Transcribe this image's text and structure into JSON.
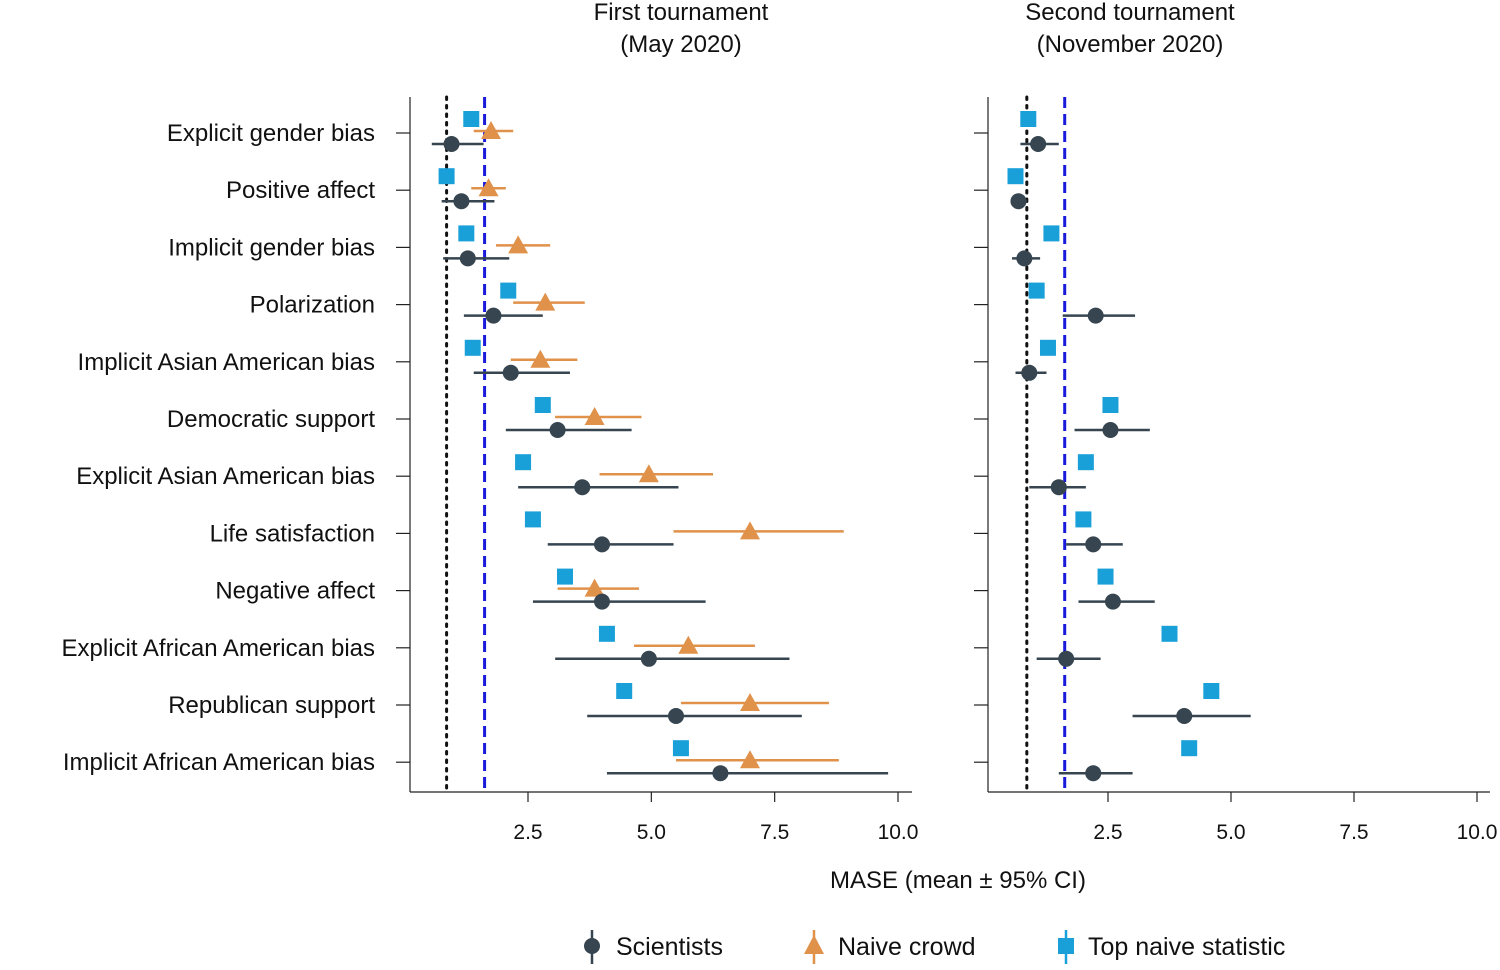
{
  "chart_data": {
    "type": "scatter",
    "xlabel": "MASE (mean ± 95% CI)",
    "xlim": [
      0,
      10.2
    ],
    "xticks": [
      2.5,
      5.0,
      7.5,
      10.0
    ],
    "xtick_labels": [
      "2.5",
      "5.0",
      "7.5",
      "10.0"
    ],
    "categories": [
      "Explicit gender bias",
      "Positive affect",
      "Implicit gender bias",
      "Polarization",
      "Implicit Asian American bias",
      "Democratic support",
      "Explicit Asian American bias",
      "Life satisfaction",
      "Negative affect",
      "Explicit African American bias",
      "Republican support",
      "Implicit African American bias"
    ],
    "reference_lines": [
      {
        "name": "dotted-black",
        "x": 0.85,
        "style": "dotted",
        "color": "#111111"
      },
      {
        "name": "dashed-blue",
        "x": 1.62,
        "style": "dashed",
        "color": "#1a1adb"
      }
    ],
    "legend": [
      {
        "name": "Scientists",
        "marker": "circle",
        "color": "#36454f"
      },
      {
        "name": "Naive crowd",
        "marker": "triangle",
        "color": "#e0914a"
      },
      {
        "name": "Top naive statistic",
        "marker": "square",
        "color": "#1aa0d8"
      }
    ],
    "panels": [
      {
        "title_line1": "First tournament",
        "title_line2": "(May 2020)",
        "series": [
          {
            "name": "Top naive statistic",
            "marker": "square",
            "values": [
              1.35,
              0.85,
              1.25,
              2.1,
              1.38,
              2.8,
              2.4,
              2.6,
              3.25,
              4.1,
              4.45,
              5.6
            ],
            "ci": null
          },
          {
            "name": "Naive crowd",
            "marker": "triangle",
            "values": [
              1.75,
              1.7,
              2.3,
              2.85,
              2.75,
              3.85,
              4.95,
              7.0,
              3.85,
              5.75,
              7.0,
              7.0
            ],
            "ci": [
              [
                1.4,
                2.2
              ],
              [
                1.35,
                2.05
              ],
              [
                1.85,
                2.95
              ],
              [
                2.2,
                3.65
              ],
              [
                2.15,
                3.5
              ],
              [
                3.05,
                4.8
              ],
              [
                3.95,
                6.25
              ],
              [
                5.45,
                8.9
              ],
              [
                3.1,
                4.75
              ],
              [
                4.65,
                7.1
              ],
              [
                5.6,
                8.6
              ],
              [
                5.5,
                8.8
              ]
            ]
          },
          {
            "name": "Scientists",
            "marker": "circle",
            "values": [
              0.95,
              1.15,
              1.28,
              1.8,
              2.15,
              3.1,
              3.6,
              4.0,
              4.0,
              4.95,
              5.5,
              6.4
            ],
            "ci": [
              [
                0.55,
                1.6
              ],
              [
                0.75,
                1.82
              ],
              [
                0.78,
                2.12
              ],
              [
                1.2,
                2.8
              ],
              [
                1.4,
                3.35
              ],
              [
                2.05,
                4.6
              ],
              [
                2.3,
                5.55
              ],
              [
                2.9,
                5.45
              ],
              [
                2.6,
                6.1
              ],
              [
                3.05,
                7.8
              ],
              [
                3.7,
                8.05
              ],
              [
                4.1,
                9.8
              ]
            ]
          }
        ]
      },
      {
        "title_line1": "Second tournament",
        "title_line2": "(November 2020)",
        "series": [
          {
            "name": "Top naive statistic",
            "marker": "square",
            "values": [
              0.88,
              0.62,
              1.35,
              1.05,
              1.28,
              2.55,
              2.05,
              2.0,
              2.45,
              3.75,
              4.6,
              4.15
            ],
            "ci": null
          },
          {
            "name": "Scientists",
            "marker": "circle",
            "values": [
              1.08,
              0.68,
              0.8,
              2.25,
              0.9,
              2.55,
              1.5,
              2.2,
              2.6,
              1.65,
              4.05,
              2.2
            ],
            "ci": [
              [
                0.72,
                1.5
              ],
              [
                0.55,
                0.85
              ],
              [
                0.55,
                1.12
              ],
              [
                1.58,
                3.05
              ],
              [
                0.62,
                1.25
              ],
              [
                1.82,
                3.35
              ],
              [
                0.9,
                2.05
              ],
              [
                1.65,
                2.8
              ],
              [
                1.9,
                3.45
              ],
              [
                1.05,
                2.35
              ],
              [
                3.0,
                5.4
              ],
              [
                1.5,
                3.0
              ]
            ]
          }
        ]
      }
    ]
  }
}
